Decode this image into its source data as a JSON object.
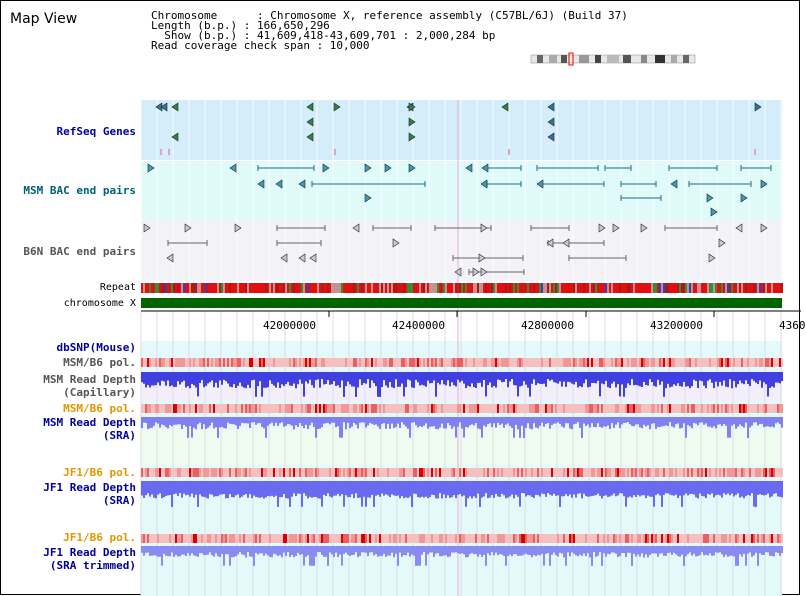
{
  "view": {
    "title": "Map View"
  },
  "info": {
    "line1": "Chromosome      : Chromosome X, reference assembly (C57BL/6J) (Build 37)",
    "line2": "Length (b.p.) : 166,650,296",
    "line3": "  Show (b.p.) : 41,609,418-43,609,701 : 2,000,284 bp",
    "line4": "Read coverage check span : 10,000"
  },
  "tracks": {
    "refseq": "RefSeq Genes",
    "msm_bac": "MSM BAC end pairs",
    "b6n_bac": "B6N BAC end pairs",
    "repeat": "Repeat",
    "chromosome": "chromosome X",
    "dbsnp": "dbSNP(Mouse)",
    "msm_pol1": "MSM/B6 pol.",
    "msm_depth_cap": "MSM Read Depth\n(Capillary)",
    "msm_pol2": "MSM/B6 pol.",
    "msm_depth_sra": "MSM Read Depth\n(SRA)",
    "jf1_pol1": "JF1/B6 pol.",
    "jf1_depth_sra": "JF1 Read Depth\n(SRA)",
    "jf1_pol2": "JF1/B6 pol.",
    "jf1_depth_trim": "JF1 Read Depth\n(SRA trimmed)"
  },
  "axis": {
    "ticks": [
      "42000000",
      "42400000",
      "42800000",
      "43200000",
      "4360"
    ]
  },
  "colors": {
    "label_blue": "#00009c",
    "label_teal": "#00607a",
    "label_gray": "#555555",
    "label_orange": "#e69500",
    "refseq_bg": "#d5ecfa",
    "msm_bac_bg": "#e0fafa",
    "b6n_bac_bg": "#f3f3f7",
    "chromosome_green": "#006400",
    "depth_blue": "#3a3ae8",
    "sra_bg": "#eefbee",
    "cap_bg": "#f2eefa"
  },
  "icons": [
    "chromosome-ideogram",
    "gene-arrow-icons",
    "bac-pair-arrows"
  ]
}
